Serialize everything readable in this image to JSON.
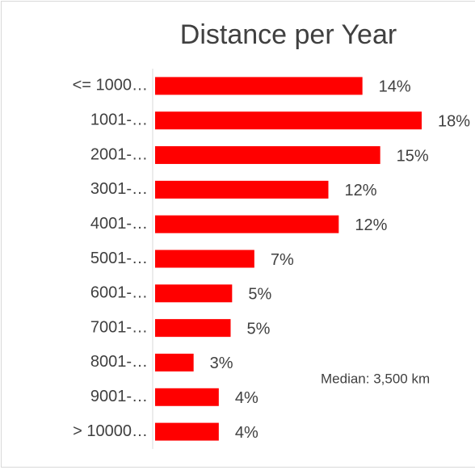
{
  "chart_data": {
    "type": "hbar",
    "title": "Distance per Year",
    "categories": [
      "<= 1000…",
      "1001-…",
      "2001-…",
      "3001-…",
      "4001-…",
      "5001-…",
      "6001-…",
      "7001-…",
      "8001-…",
      "9001-…",
      "> 10000…"
    ],
    "values": [
      14,
      18,
      15.2,
      11.7,
      12.4,
      6.7,
      5.2,
      5.1,
      2.6,
      4.3,
      4.3
    ],
    "value_labels": [
      "14%",
      "18%",
      "15%",
      "12%",
      "12%",
      "7%",
      "5%",
      "5%",
      "3%",
      "4%",
      "4%"
    ],
    "color": "#ff0000",
    "annotation": "Median: 3,500 km"
  }
}
